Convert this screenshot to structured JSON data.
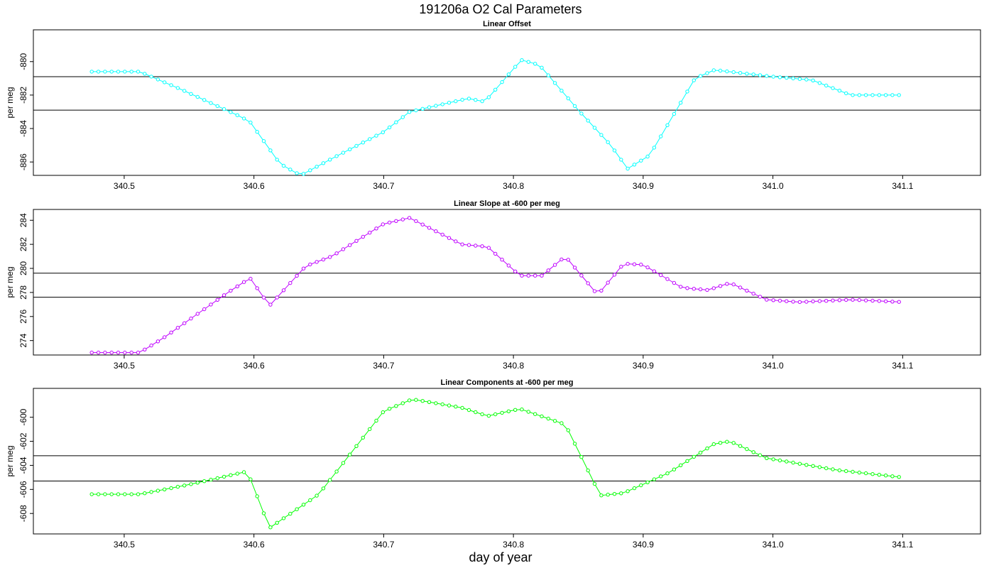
{
  "title": "191206a   O2 Cal Parameters",
  "xlabel": "day of year",
  "chart_data": [
    {
      "type": "line",
      "title": "Linear Offset",
      "ylabel": "per meg",
      "color": "#00ffff",
      "xlim": [
        340.43,
        341.16
      ],
      "ylim": [
        -886.8,
        -878.1
      ],
      "xticks": [
        "340.5",
        "340.6",
        "340.7",
        "340.8",
        "340.9",
        "341.0",
        "341.1"
      ],
      "yticks": [
        "-880",
        "-882",
        "-884",
        "-886"
      ],
      "hlines": [
        -880.9,
        -882.9
      ],
      "anchors": [
        [
          340.475,
          -880.6
        ],
        [
          340.512,
          -880.6
        ],
        [
          340.545,
          -881.7
        ],
        [
          340.59,
          -883.3
        ],
        [
          340.597,
          -883.6
        ],
        [
          340.62,
          -886.1
        ],
        [
          340.636,
          -886.8
        ],
        [
          340.66,
          -885.8
        ],
        [
          340.7,
          -884.2
        ],
        [
          340.72,
          -883.0
        ],
        [
          340.765,
          -882.2
        ],
        [
          340.778,
          -882.4
        ],
        [
          340.806,
          -879.9
        ],
        [
          340.82,
          -880.2
        ],
        [
          340.85,
          -882.9
        ],
        [
          340.875,
          -885.0
        ],
        [
          340.888,
          -886.4
        ],
        [
          340.905,
          -885.6
        ],
        [
          340.94,
          -881.0
        ],
        [
          340.955,
          -880.5
        ],
        [
          341.0,
          -880.9
        ],
        [
          341.03,
          -881.1
        ],
        [
          341.06,
          -882.0
        ],
        [
          341.1,
          -882.0
        ]
      ],
      "point_step": 0.0051
    },
    {
      "type": "line",
      "title": "Linear Slope at -600 per meg",
      "ylabel": "per meg",
      "color": "#bf00ff",
      "xlim": [
        340.43,
        341.16
      ],
      "ylim": [
        272.8,
        284.9
      ],
      "xticks": [
        "340.5",
        "340.6",
        "340.7",
        "340.8",
        "340.9",
        "341.0",
        "341.1"
      ],
      "yticks": [
        "274",
        "276",
        "278",
        "280",
        "282",
        "284"
      ],
      "hlines": [
        279.6,
        277.6
      ],
      "anchors": [
        [
          340.475,
          273.0
        ],
        [
          340.512,
          273.0
        ],
        [
          340.53,
          274.2
        ],
        [
          340.58,
          278.0
        ],
        [
          340.597,
          279.2
        ],
        [
          340.612,
          276.9
        ],
        [
          340.64,
          280.2
        ],
        [
          340.66,
          281.0
        ],
        [
          340.7,
          283.7
        ],
        [
          340.72,
          284.2
        ],
        [
          340.76,
          282.0
        ],
        [
          340.78,
          281.8
        ],
        [
          340.805,
          279.4
        ],
        [
          340.822,
          279.4
        ],
        [
          340.84,
          281.0
        ],
        [
          340.865,
          277.8
        ],
        [
          340.885,
          280.4
        ],
        [
          340.9,
          280.3
        ],
        [
          340.93,
          278.4
        ],
        [
          340.95,
          278.2
        ],
        [
          340.967,
          278.8
        ],
        [
          340.995,
          277.4
        ],
        [
          341.02,
          277.2
        ],
        [
          341.06,
          277.4
        ],
        [
          341.1,
          277.2
        ]
      ],
      "point_step": 0.0051
    },
    {
      "type": "line",
      "title": "Linear Components at -600 per meg",
      "ylabel": "per meg",
      "color": "#00ff00",
      "xlim": [
        340.43,
        341.16
      ],
      "ylim": [
        -609.7,
        -597.6
      ],
      "xticks": [
        "340.5",
        "340.6",
        "340.7",
        "340.8",
        "340.9",
        "341.0",
        "341.1"
      ],
      "yticks": [
        "-600",
        "-602",
        "-604",
        "-606",
        "-608"
      ],
      "hlines": [
        -603.2,
        -605.3
      ],
      "anchors": [
        [
          340.475,
          -606.4
        ],
        [
          340.512,
          -606.4
        ],
        [
          340.55,
          -605.6
        ],
        [
          340.595,
          -604.5
        ],
        [
          340.612,
          -609.2
        ],
        [
          340.65,
          -606.4
        ],
        [
          340.7,
          -599.5
        ],
        [
          340.722,
          -598.5
        ],
        [
          340.76,
          -599.2
        ],
        [
          340.78,
          -599.9
        ],
        [
          340.805,
          -599.3
        ],
        [
          340.84,
          -600.6
        ],
        [
          340.867,
          -606.5
        ],
        [
          340.885,
          -606.3
        ],
        [
          340.92,
          -604.6
        ],
        [
          340.955,
          -602.2
        ],
        [
          340.967,
          -602.0
        ],
        [
          340.995,
          -603.4
        ],
        [
          341.05,
          -604.4
        ],
        [
          341.1,
          -605.0
        ]
      ],
      "point_step": 0.0051
    }
  ]
}
